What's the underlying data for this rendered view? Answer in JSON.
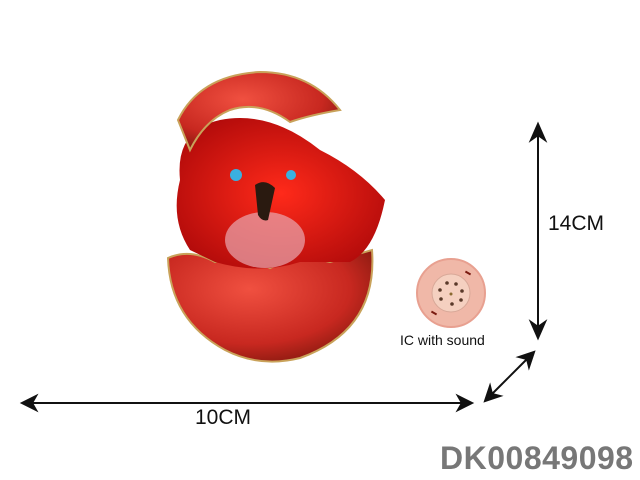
{
  "dimensions": {
    "width_label": "10CM",
    "height_label": "14CM"
  },
  "feature": {
    "label": "IC with sound",
    "icon": "speaker-chip-icon"
  },
  "product_code": "DK00849098",
  "colors": {
    "egg": "#d8322a",
    "creature": "#e01010",
    "chip": "#f0b8a8",
    "code": "#777777"
  }
}
